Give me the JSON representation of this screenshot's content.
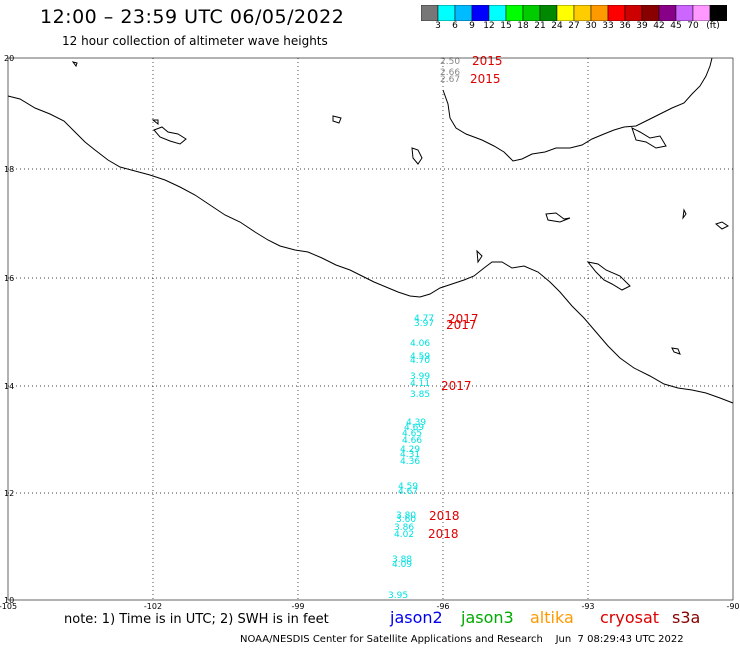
{
  "header": {
    "title": "12:00 – 23:59 UTC 06/05/2022",
    "subtitle": "12 hour collection of altimeter wave heights"
  },
  "colorbar": {
    "colors": [
      "#777777",
      "#00ffff",
      "#00bbff",
      "#0000ff",
      "#00ffff",
      "#00ff00",
      "#00cc00",
      "#008800",
      "#ffff00",
      "#ffcc00",
      "#ff9900",
      "#ff0000",
      "#cc0000",
      "#880000",
      "#880088",
      "#cc66ff",
      "#ff99ff",
      "#000000"
    ],
    "labels": [
      "3",
      "6",
      "9",
      "12",
      "15",
      "18",
      "21",
      "24",
      "27",
      "30",
      "33",
      "36",
      "39",
      "42",
      "45",
      "70",
      "(ft)"
    ]
  },
  "axes": {
    "y_ticks": [
      "20",
      "18",
      "16",
      "14",
      "12",
      "10"
    ],
    "x_ticks": [
      "-105",
      "-102",
      "-99",
      "-96",
      "-93",
      "-90"
    ]
  },
  "observations": [
    {
      "value": "2.50",
      "style": "dark"
    },
    {
      "value": "2.66",
      "style": "dark"
    },
    {
      "value": "2.67",
      "style": "dark"
    },
    {
      "value": "4.77",
      "style": "cyan"
    },
    {
      "value": "3.97",
      "style": "cyan"
    },
    {
      "value": "4.06",
      "style": "cyan"
    },
    {
      "value": "4.59",
      "style": "cyan"
    },
    {
      "value": "4.70",
      "style": "cyan"
    },
    {
      "value": "3.99",
      "style": "cyan"
    },
    {
      "value": "4.11",
      "style": "cyan"
    },
    {
      "value": "3.85",
      "style": "cyan"
    },
    {
      "value": "4.39",
      "style": "cyan"
    },
    {
      "value": "4.69",
      "style": "cyan"
    },
    {
      "value": "4.65",
      "style": "cyan"
    },
    {
      "value": "4.66",
      "style": "cyan"
    },
    {
      "value": "4.29",
      "style": "cyan"
    },
    {
      "value": "4.31",
      "style": "cyan"
    },
    {
      "value": "4.36",
      "style": "cyan"
    },
    {
      "value": "4.59",
      "style": "cyan"
    },
    {
      "value": "4.67",
      "style": "cyan"
    },
    {
      "value": "3.80",
      "style": "cyan"
    },
    {
      "value": "3.60",
      "style": "cyan"
    },
    {
      "value": "3.86",
      "style": "cyan"
    },
    {
      "value": "4.02",
      "style": "cyan"
    },
    {
      "value": "3.88",
      "style": "cyan"
    },
    {
      "value": "4.09",
      "style": "cyan"
    },
    {
      "value": "3.95",
      "style": "cyan"
    }
  ],
  "year_labels": [
    "2015",
    "2015",
    "2017",
    "2017",
    "2017",
    "2018",
    "2018"
  ],
  "footer": {
    "note": "note:  1) Time is in UTC;  2) SWH is in feet",
    "satellites": [
      {
        "name": "jason2",
        "color": "#0000ee"
      },
      {
        "name": "jason3",
        "color": "#00aa00"
      },
      {
        "name": "altika",
        "color": "#ff9900"
      },
      {
        "name": "cryosat",
        "color": "#dd0000"
      },
      {
        "name": "s3a",
        "color": "#880000"
      }
    ],
    "credit": "NOAA/NESDIS Center for Satellite Applications and Research    Jun  7 08:29:43 UTC 2022"
  }
}
